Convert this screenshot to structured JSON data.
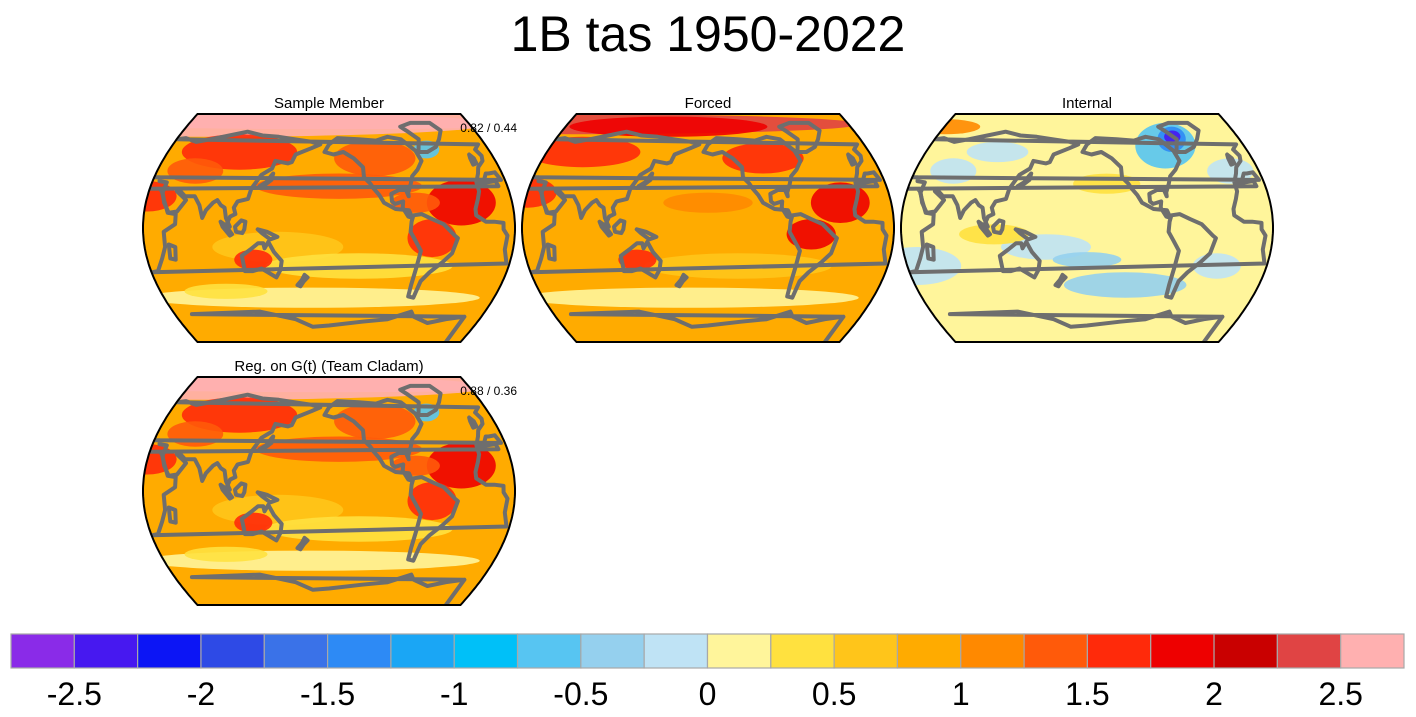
{
  "figure": {
    "title": "1B tas 1950-2022"
  },
  "panels": [
    {
      "title": "Sample Member",
      "stats": "0.82 / 0.44",
      "pattern": "warm"
    },
    {
      "title": "Forced",
      "stats": "",
      "pattern": "forced"
    },
    {
      "title": "Internal",
      "stats": "",
      "pattern": "internal"
    },
    {
      "title": "Reg. on G(t) (Team Cladam)",
      "stats": "0.88 / 0.36",
      "pattern": "warm"
    }
  ],
  "colorbar": {
    "colors": [
      "#8a2be8",
      "#4718f0",
      "#0c15f5",
      "#2e4ae6",
      "#3a72e8",
      "#2d8af5",
      "#1aa6f5",
      "#00c0f8",
      "#57c5f2",
      "#95d0ee",
      "#bfe3f5",
      "#fff59b",
      "#ffe13f",
      "#ffc51a",
      "#ffab00",
      "#ff8900",
      "#ff5a0a",
      "#ff2a0a",
      "#ee0000",
      "#c90000",
      "#e04444",
      "#ffb0b0"
    ],
    "tick_labels": [
      "-2.5",
      "-2",
      "-1.5",
      "-1",
      "-0.5",
      "0",
      "0.5",
      "1",
      "1.5",
      "2",
      "2.5"
    ]
  },
  "chart_data": {
    "type": "heatmap",
    "title": "1B tas 1950-2022",
    "subplots": [
      "Sample Member",
      "Forced",
      "Internal",
      "Reg. on G(t) (Team Cladam)"
    ],
    "colorbar_range": [
      -2.75,
      2.75
    ],
    "colorbar_ticks": [
      -2.5,
      -2,
      -1.5,
      -1,
      -0.5,
      0,
      0.5,
      1,
      1.5,
      2,
      2.5
    ],
    "panel_stats": [
      {
        "panel": "Sample Member",
        "stats": "0.82 / 0.44"
      },
      {
        "panel": "Reg. on G(t) (Team Cladam)",
        "stats": "0.88 / 0.36"
      }
    ]
  }
}
